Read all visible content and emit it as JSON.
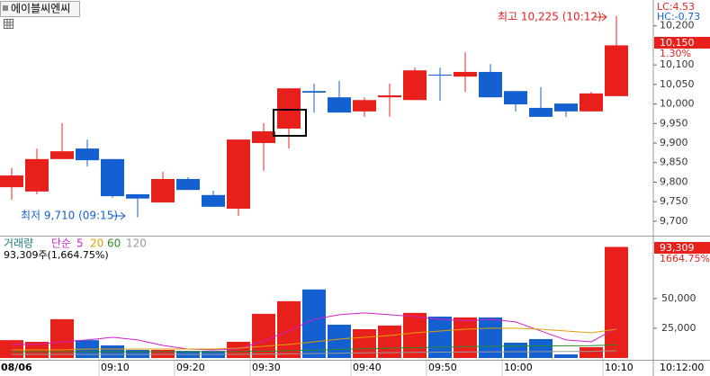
{
  "chart_data": [
    {
      "type": "candlestick",
      "title": "에이블씨엔씨",
      "categories": [
        "08/06",
        null,
        null,
        null,
        "09:10",
        null,
        null,
        "09:20",
        null,
        null,
        "09:30",
        null,
        null,
        null,
        "09:40",
        null,
        null,
        "09:50",
        null,
        null,
        "10:00",
        null,
        null,
        null,
        "10:10"
      ],
      "open": [
        9787,
        9776,
        9859,
        9886,
        9859,
        9769,
        9748,
        9808,
        9767,
        9732,
        9900,
        9937,
        10033,
        10017,
        9981,
        10017,
        10010,
        10075,
        10070,
        10082,
        10033,
        9990,
        10001,
        9981,
        10020
      ],
      "close": [
        9817,
        9859,
        9879,
        9856,
        9764,
        9758,
        9808,
        9780,
        9737,
        9909,
        9930,
        10040,
        10029,
        9978,
        10010,
        10022,
        10086,
        10073,
        10082,
        10017,
        9999,
        9967,
        9981,
        10027,
        10150
      ],
      "high": [
        9836,
        9886,
        9951,
        9909,
        9859,
        9769,
        9826,
        9813,
        9778,
        9909,
        9951,
        10040,
        10052,
        10059,
        10017,
        10052,
        10093,
        10093,
        10132,
        10102,
        10033,
        10043,
        10001,
        10031,
        10225
      ],
      "low": [
        9755,
        9769,
        9859,
        9840,
        9760,
        9710,
        9748,
        9780,
        9737,
        9714,
        9829,
        9886,
        9978,
        9978,
        9967,
        9967,
        10010,
        10008,
        10031,
        10017,
        9981,
        9967,
        9967,
        9981,
        10020
      ],
      "up_color": "#e8201c",
      "down_color": "#1560d0",
      "ylim": [
        9663,
        10266
      ],
      "yticks": [
        {
          "value": 9700,
          "label": "9,700"
        },
        {
          "value": 9750,
          "label": "9,750"
        },
        {
          "value": 9800,
          "label": "9,800"
        },
        {
          "value": 9850,
          "label": "9,850"
        },
        {
          "value": 9900,
          "label": "9,900"
        },
        {
          "value": 9950,
          "label": "9,950"
        },
        {
          "value": 10000,
          "label": "10,000"
        },
        {
          "value": 10050,
          "label": "10,050"
        },
        {
          "value": 10100,
          "label": "10,100"
        },
        {
          "value": 10200,
          "label": "10,200"
        }
      ],
      "high_label": "최고 10,225 (10:12)",
      "low_label": "최저 9,710 (09:15)",
      "last_label": "10,150",
      "change_label": "1.30%",
      "lc_label": "LC:4.53",
      "hc_label": "HC:-0.73",
      "time_label": "10:12:00"
    },
    {
      "type": "bar",
      "title": "거래량",
      "subtitle": "단순",
      "caption": "93,309주(1,664.75%)",
      "values": [
        15000,
        13600,
        32600,
        15000,
        10600,
        6800,
        6800,
        6000,
        6000,
        13600,
        37100,
        47700,
        57600,
        28000,
        24200,
        27300,
        37900,
        34800,
        34100,
        34100,
        12900,
        15900,
        3000,
        9100,
        93309
      ],
      "series": [
        {
          "name": "5",
          "color": "#d020c8",
          "values": [
            11400,
            11400,
            13600,
            15200,
            17400,
            15200,
            10600,
            7600,
            6800,
            7600,
            14400,
            22700,
            32600,
            36400,
            37900,
            36400,
            34800,
            32600,
            31100,
            32600,
            30300,
            22700,
            15200,
            13600,
            25000
          ]
        },
        {
          "name": "20",
          "color": "#e0a000",
          "values": [
            6800,
            6800,
            6800,
            7600,
            7600,
            7600,
            7600,
            7600,
            7600,
            8300,
            9800,
            11400,
            13600,
            15900,
            17400,
            18900,
            21200,
            22700,
            24200,
            25000,
            25000,
            24200,
            22700,
            21200,
            24200
          ]
        },
        {
          "name": "60",
          "color": "#2a8a2a",
          "values": [
            5300,
            5300,
            5300,
            5300,
            5300,
            5300,
            5300,
            5300,
            5300,
            5400,
            5700,
            6100,
            6600,
            7200,
            7700,
            8200,
            8700,
            9100,
            9500,
            9800,
            10000,
            10200,
            10300,
            10400,
            11000
          ]
        },
        {
          "name": "120",
          "color": "#999999",
          "values": [
            3000,
            3000,
            3000,
            3000,
            3000,
            3000,
            3000,
            3000,
            3000,
            3100,
            3300,
            3500,
            3800,
            4100,
            4300,
            4500,
            4700,
            4900,
            5100,
            5200,
            5300,
            5400,
            5500,
            5600,
            6000
          ]
        }
      ],
      "ylim": [
        0,
        102000
      ],
      "yticks": [
        {
          "value": 25000,
          "label": "25,000"
        },
        {
          "value": 50000,
          "label": "50,000"
        }
      ],
      "last_label": "93,309",
      "change_label": "1664.75%"
    }
  ]
}
